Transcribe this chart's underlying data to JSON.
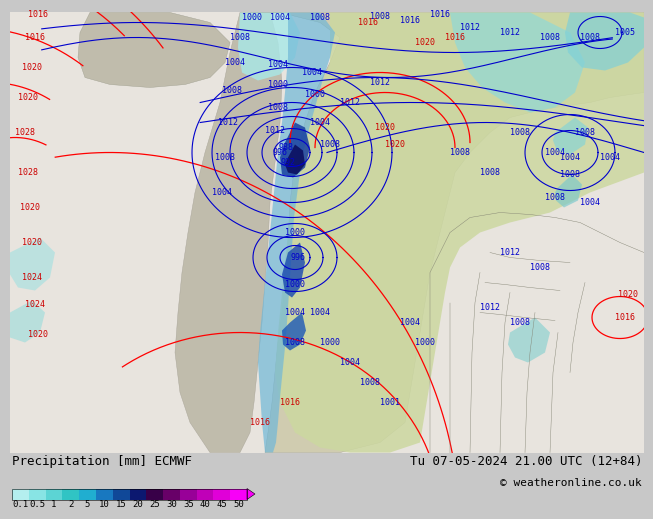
{
  "title_left": "Precipitation [mm] ECMWF",
  "title_right": "Tu 07-05-2024 21.00 UTC (12+84)",
  "copyright": "© weatheronline.co.uk",
  "colorbar_labels": [
    "0.1",
    "0.5",
    "1",
    "2",
    "5",
    "10",
    "15",
    "20",
    "25",
    "30",
    "35",
    "40",
    "45",
    "50"
  ],
  "colorbar_colors": [
    "#b4efef",
    "#88e4e4",
    "#5cd4d4",
    "#30c4c4",
    "#20aed0",
    "#1878c0",
    "#104898",
    "#0c1870",
    "#380048",
    "#680068",
    "#980098",
    "#c000b8",
    "#e000d8",
    "#f800f8"
  ],
  "bg_color": "#c8c8c8",
  "ocean_color": "#e8e4de",
  "land_color": "#d4d0b8",
  "precip_light_cyan": "#a0e8e8",
  "precip_cyan": "#70d0d0",
  "precip_mid_blue": "#2060b8",
  "precip_dark_blue": "#102080",
  "precip_darkest": "#0c0850",
  "land_green": "#c8d8a0",
  "title_fontsize": 9,
  "copyright_fontsize": 8,
  "isobar_fontsize": 6,
  "label_fontsize": 6.5
}
